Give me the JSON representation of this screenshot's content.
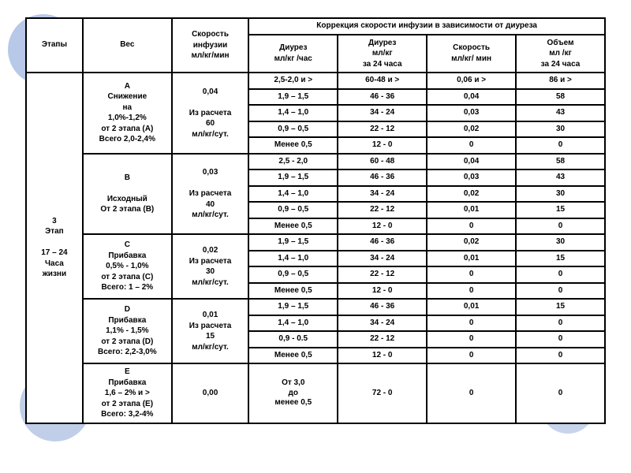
{
  "header": {
    "stages": "Этапы",
    "weight": "Вес",
    "rate": "Скорость\nинфузии\nмл/кг/мин",
    "corr": "Коррекция скорости инфузии в зависимости от диуреза",
    "sub1": "Диурез\nмл/кг /час",
    "sub2": "Диурез\nмл/кг\nза 24 часа",
    "sub3": "Скорость\nмл/кг/ мин",
    "sub4": "Объем\nмл /кг\nза 24 часа"
  },
  "stage": "3\nЭтап\n\n17 – 24\nЧаса\nжизни",
  "groups": [
    {
      "wt": "A\nСнижение\nна\n1,0%-1,2%\nот 2 этапа (A)\nВсего 2,0-2,4%",
      "rate": "0,04\n\nИз расчета\n60\nмл/кг/сут.",
      "rows": [
        [
          "2,5-2,0 и >",
          "60-48 и >",
          "0,06  и >",
          "86 и >"
        ],
        [
          "1,9 – 1,5",
          "46 - 36",
          "0,04",
          "58"
        ],
        [
          "1,4 – 1,0",
          "34 - 24",
          "0,03",
          "43"
        ],
        [
          "0,9 – 0,5",
          "22 - 12",
          "0,02",
          "30"
        ],
        [
          "Менее 0,5",
          "12 - 0",
          "0",
          "0"
        ]
      ]
    },
    {
      "wt": "B\n\nИсходный\nОт 2 этапа (B)",
      "rate": "0,03\n\nИз расчета\n40\nмл/кг/сут.",
      "rows": [
        [
          "2,5 - 2,0",
          "60 - 48",
          "0,04",
          "58"
        ],
        [
          "1,9 – 1,5",
          "46 - 36",
          "0,03",
          "43"
        ],
        [
          "1,4 – 1,0",
          "34 - 24",
          "0,02",
          "30"
        ],
        [
          "0,9 – 0,5",
          "22 - 12",
          "0,01",
          "15"
        ],
        [
          "Менее 0,5",
          "12 - 0",
          "0",
          "0"
        ]
      ]
    },
    {
      "wt": "C\nПрибавка\n0,5% - 1,0%\nот 2 этапа (C)\nВсего: 1 – 2%",
      "rate": "0,02\nИз расчета\n30\nмл/кг/сут.",
      "rows": [
        [
          "1,9 – 1,5",
          "46 - 36",
          "0,02",
          "30"
        ],
        [
          "1,4 – 1,0",
          "34 - 24",
          "0,01",
          "15"
        ],
        [
          "0,9 – 0,5",
          "22 - 12",
          "0",
          "0"
        ],
        [
          "Менее 0,5",
          "12 - 0",
          "0",
          "0"
        ]
      ]
    },
    {
      "wt": "D\nПрибавка\n1,1% - 1,5%\nот 2 этапа (D)\nВсего: 2,2-3,0%",
      "rate": "0,01\nИз расчета\n15\nмл/кг/сут.",
      "rows": [
        [
          "1,9 – 1,5",
          "46 - 36",
          "0,01",
          "15"
        ],
        [
          "1,4 – 1,0",
          "34 - 24",
          "0",
          "0"
        ],
        [
          "0,9 - 0.5",
          "22 - 12",
          "0",
          "0"
        ],
        [
          "Менее 0,5",
          "12 - 0",
          "0",
          "0"
        ]
      ]
    },
    {
      "wt": "E\nПрибавка\n1,6 – 2% и >\nот 2 этапа (E)\nВсего: 3,2-4%",
      "rate": "0,00",
      "rows": [
        [
          "От 3,0\nдо\nменее 0,5",
          "72  - 0",
          "0",
          "0"
        ]
      ]
    }
  ]
}
